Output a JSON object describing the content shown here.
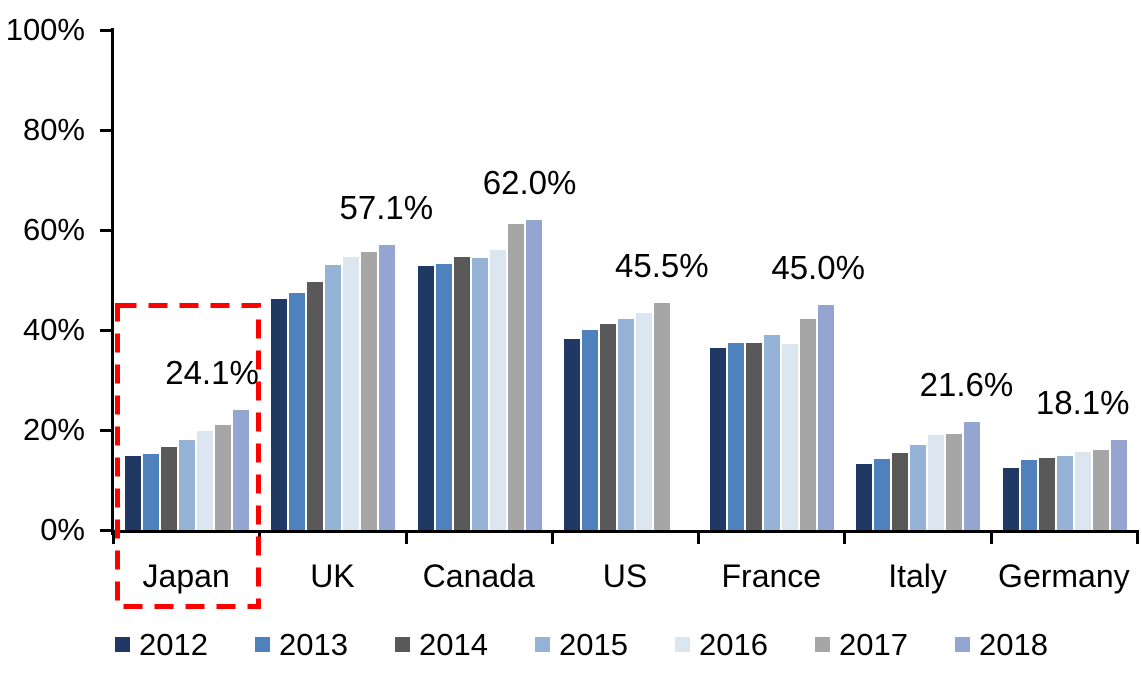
{
  "chart_data": {
    "type": "bar",
    "title": "",
    "categories": [
      "Japan",
      "UK",
      "Canada",
      "US",
      "France",
      "Italy",
      "Germany"
    ],
    "series": [
      {
        "name": "2012",
        "color": "#1F3864",
        "values": [
          14.8,
          46.2,
          52.8,
          38.2,
          36.4,
          13.3,
          12.5
        ]
      },
      {
        "name": "2013",
        "color": "#4F81BD",
        "values": [
          15.2,
          47.5,
          53.2,
          40.1,
          37.5,
          14.3,
          14.0
        ]
      },
      {
        "name": "2014",
        "color": "#595959",
        "values": [
          16.7,
          49.7,
          54.6,
          41.2,
          37.4,
          15.5,
          14.5
        ]
      },
      {
        "name": "2015",
        "color": "#95B3D7",
        "values": [
          18.0,
          53.0,
          54.5,
          42.2,
          39.0,
          17.0,
          14.9
        ]
      },
      {
        "name": "2016",
        "color": "#DCE6F1",
        "values": [
          19.9,
          54.7,
          56.0,
          43.5,
          37.2,
          19.0,
          15.6
        ]
      },
      {
        "name": "2017",
        "color": "#A6A6A6",
        "values": [
          21.0,
          55.7,
          61.3,
          45.5,
          42.2,
          19.3,
          16.0
        ]
      },
      {
        "name": "2018",
        "color": "#95A5D1",
        "values": [
          24.1,
          57.1,
          62.0,
          null,
          45.0,
          21.6,
          18.1
        ]
      }
    ],
    "data_labels": [
      "24.1%",
      "57.1%",
      "62.0%",
      "45.5%",
      "45.0%",
      "21.6%",
      "18.1%"
    ],
    "xlabel": "",
    "ylabel": "",
    "ylim": [
      0,
      100
    ],
    "ytick_step": 20,
    "ytick_labels": [
      "0%",
      "20%",
      "40%",
      "60%",
      "80%",
      "100%"
    ],
    "grid": false,
    "legend_position": "bottom",
    "legend_entries": [
      "2012",
      "2013",
      "2014",
      "2015",
      "2016",
      "2017",
      "2018"
    ],
    "highlight": {
      "category": "Japan",
      "style": "red-dashed-rectangle"
    },
    "label_dx": [
      -29,
      -1,
      -4,
      0,
      -8,
      -6,
      -36
    ]
  },
  "colors": {
    "axis": "#000000",
    "text": "#000000",
    "highlight": "#FF0000",
    "background": "#FFFFFF"
  }
}
